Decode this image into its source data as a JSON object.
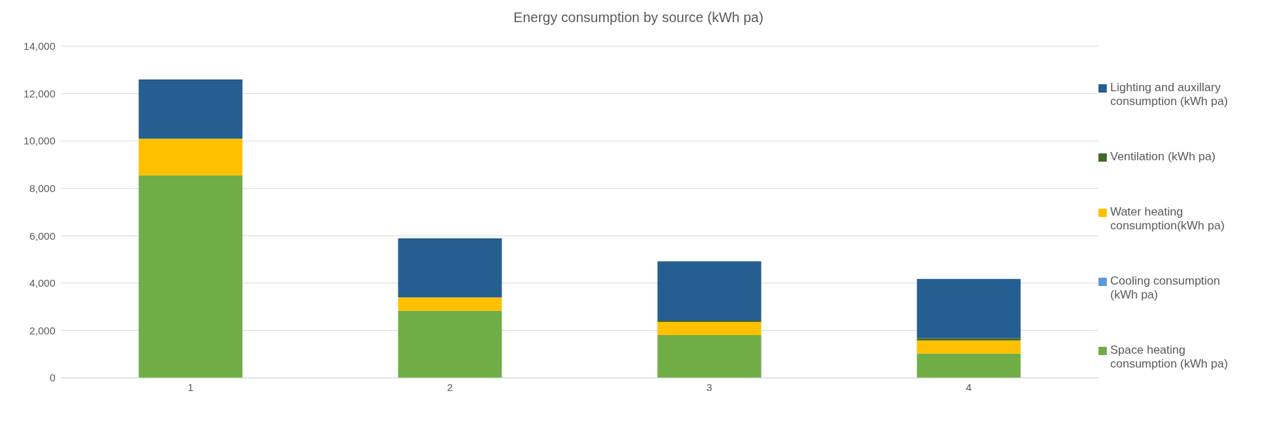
{
  "chart_data": {
    "type": "bar",
    "title": "Energy consumption by source (kWh pa)",
    "categories": [
      "1",
      "2",
      "3",
      "4"
    ],
    "stacked": true,
    "series": [
      {
        "name": "Space heating consumption (kWh pa)",
        "color": "#70ad47",
        "values": [
          8550,
          2840,
          1810,
          1030
        ]
      },
      {
        "name": "Cooling consumption (kWh pa)",
        "color": "#5b9bd5",
        "values": [
          0,
          0,
          0,
          0
        ]
      },
      {
        "name": "Water heating consumption(kWh pa)",
        "color": "#ffc000",
        "values": [
          1550,
          560,
          550,
          550
        ]
      },
      {
        "name": "Ventilation (kWh pa)",
        "color": "#43682b",
        "values": [
          0,
          0,
          60,
          100
        ]
      },
      {
        "name": "Lighting and auxillary consumption (kWh pa)",
        "color": "#255e91",
        "values": [
          2500,
          2490,
          2500,
          2500
        ]
      }
    ],
    "ylim": [
      0,
      14000
    ],
    "yticks": [
      0,
      {
        "value": 2000,
        "label": "2,000"
      },
      {
        "value": 4000,
        "label": "4,000"
      },
      {
        "value": 6000,
        "label": "6,000"
      },
      {
        "value": 8000,
        "label": "8,000"
      },
      {
        "value": 10000,
        "label": "10,000"
      },
      {
        "value": 12000,
        "label": "12,000"
      },
      {
        "value": 14000,
        "label": "14,000"
      }
    ],
    "grid": "y",
    "legend": "right"
  }
}
